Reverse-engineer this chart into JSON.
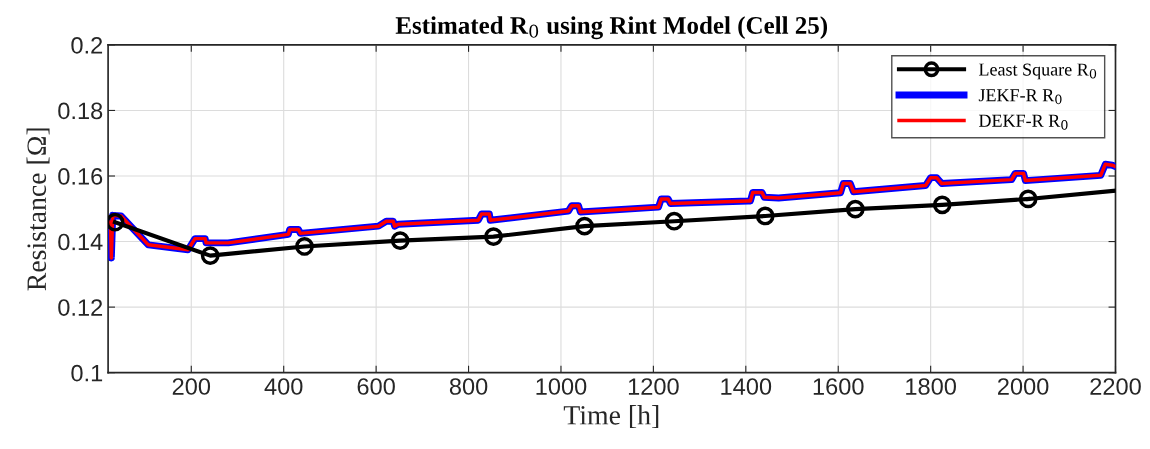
{
  "chart_data": {
    "type": "line",
    "title": "Estimated R$_{0}$ using Rint Model (Cell 25)",
    "xlabel": "Time [h]",
    "ylabel": "Resistance [Ω]",
    "xlim": [
      20,
      2200
    ],
    "ylim": [
      0.1,
      0.2
    ],
    "xticks": [
      200,
      400,
      600,
      800,
      1000,
      1200,
      1400,
      1600,
      1800,
      2000,
      2200
    ],
    "yticks": [
      0.1,
      0.12,
      0.14,
      0.16,
      0.18,
      0.2
    ],
    "grid": true,
    "legend": "top right",
    "series": [
      {
        "name": "Least Square R$_{0}$",
        "color": "#000000",
        "marker": "circle",
        "x": [
          35,
          241,
          445,
          652,
          854,
          1051,
          1245,
          1442,
          1637,
          1825,
          2011
        ],
        "values": [
          0.1459,
          0.1357,
          0.1385,
          0.1403,
          0.1415,
          0.1447,
          0.1462,
          0.1478,
          0.1499,
          0.1512,
          0.153
        ]
      },
      {
        "color": "#000000",
        "marker": "none",
        "x": [
          2011,
          2200
        ],
        "values": [
          0.153,
          0.1555
        ]
      },
      {
        "name": "JEKF-R R$_{0}$",
        "color": "#0000ff",
        "marker": "none",
        "x": [
          25,
          27,
          30,
          48,
          107,
          193,
          208,
          230,
          232,
          280,
          410,
          413,
          432,
          436,
          605,
          622,
          637,
          640,
          648,
          821,
          828,
          845,
          847,
          1016,
          1023,
          1038,
          1042,
          1211,
          1217,
          1232,
          1237,
          1405,
          1410,
          1415,
          1435,
          1440,
          1471,
          1605,
          1611,
          1626,
          1633,
          1789,
          1800,
          1813,
          1824,
          1975,
          1983,
          2001,
          2005,
          2168,
          2178,
          2193,
          2198
        ],
        "values": [
          0.146,
          0.135,
          0.148,
          0.1478,
          0.139,
          0.1375,
          0.1409,
          0.1409,
          0.1396,
          0.1396,
          0.1422,
          0.1437,
          0.1437,
          0.1425,
          0.1447,
          0.1462,
          0.1462,
          0.1447,
          0.1453,
          0.1465,
          0.1484,
          0.1484,
          0.1465,
          0.1493,
          0.1509,
          0.1509,
          0.149,
          0.1505,
          0.153,
          0.153,
          0.1516,
          0.1524,
          0.1524,
          0.155,
          0.155,
          0.1535,
          0.1533,
          0.1549,
          0.1577,
          0.1577,
          0.1552,
          0.1571,
          0.1595,
          0.1595,
          0.1577,
          0.1589,
          0.1608,
          0.1608,
          0.1586,
          0.1602,
          0.1636,
          0.1633,
          0.163
        ]
      },
      {
        "name": "DEKF-R R$_{0}$",
        "color": "#ff0000",
        "marker": "none",
        "x": [
          25,
          27,
          30,
          48,
          107,
          193,
          208,
          230,
          232,
          280,
          410,
          413,
          432,
          436,
          605,
          622,
          637,
          640,
          648,
          821,
          828,
          845,
          847,
          1016,
          1023,
          1038,
          1042,
          1211,
          1217,
          1232,
          1237,
          1405,
          1410,
          1415,
          1435,
          1440,
          1471,
          1605,
          1611,
          1626,
          1633,
          1789,
          1800,
          1813,
          1824,
          1975,
          1983,
          2001,
          2005,
          2168,
          2178,
          2193,
          2198
        ],
        "values": [
          0.146,
          0.135,
          0.148,
          0.1478,
          0.139,
          0.1375,
          0.1409,
          0.1409,
          0.1396,
          0.1396,
          0.1422,
          0.1437,
          0.1437,
          0.1425,
          0.1447,
          0.1462,
          0.1462,
          0.1447,
          0.1453,
          0.1465,
          0.1484,
          0.1484,
          0.1465,
          0.1493,
          0.1509,
          0.1509,
          0.149,
          0.1505,
          0.153,
          0.153,
          0.1516,
          0.1524,
          0.1524,
          0.155,
          0.155,
          0.1535,
          0.1533,
          0.1549,
          0.1577,
          0.1577,
          0.1552,
          0.1571,
          0.1595,
          0.1595,
          0.1577,
          0.1589,
          0.1608,
          0.1608,
          0.1586,
          0.1602,
          0.1636,
          0.1633,
          0.163
        ]
      }
    ]
  }
}
